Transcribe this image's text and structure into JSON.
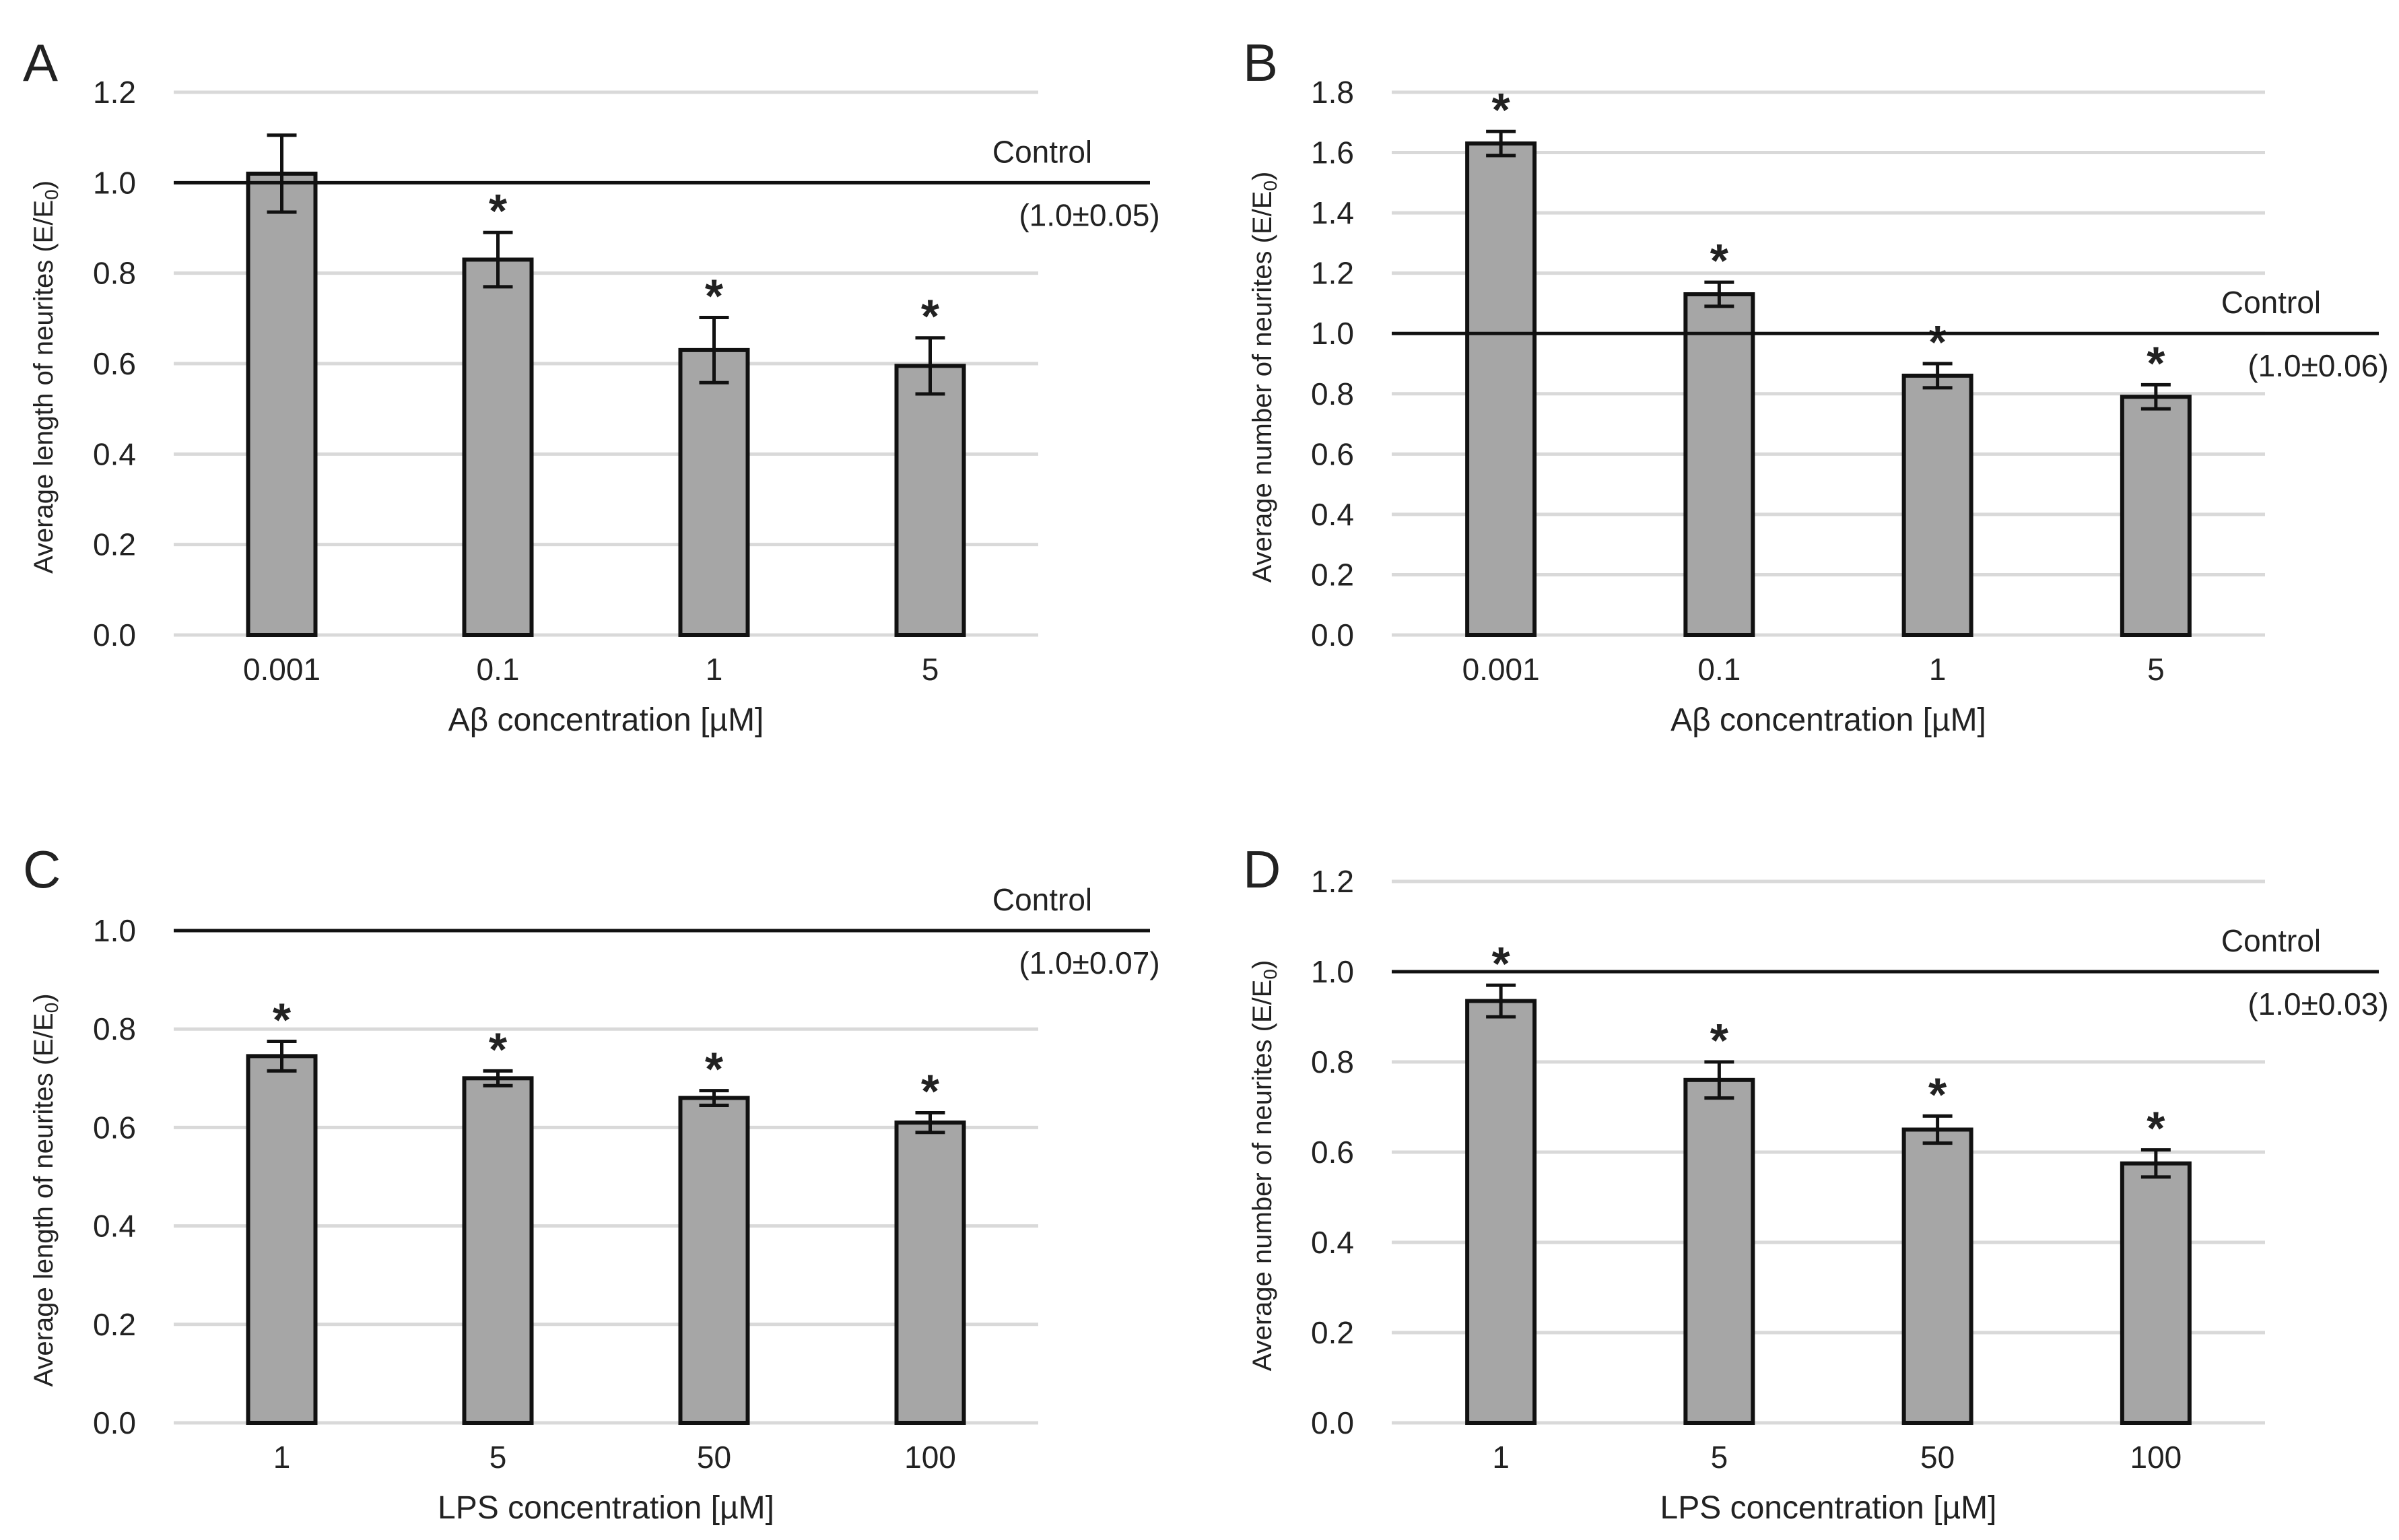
{
  "chart_data": [
    {
      "panel": "A",
      "type": "bar",
      "categories": [
        "0.001",
        "0.1",
        "1",
        "5"
      ],
      "values": [
        1.02,
        0.83,
        0.63,
        0.595
      ],
      "errors": [
        0.085,
        0.06,
        0.072,
        0.062
      ],
      "significant": [
        false,
        true,
        true,
        true
      ],
      "significance_marker": "*",
      "xlabel": "Aβ concentration [µM]",
      "ylabel": "Average length of neurites (E/E",
      "ylabel_sub": "0",
      "ylabel_end": ")",
      "ylim": [
        0,
        1.2
      ],
      "yticks": [
        "0.0",
        "0.2",
        "0.4",
        "0.6",
        "0.8",
        "1.0",
        "1.2"
      ],
      "grid": true,
      "reference_line": {
        "value": 1.0,
        "label": "Control",
        "sublabel": "(1.0±0.05)"
      },
      "bar_color": "#a6a6a6"
    },
    {
      "panel": "B",
      "type": "bar",
      "categories": [
        "0.001",
        "0.1",
        "1",
        "5"
      ],
      "values": [
        1.63,
        1.13,
        0.86,
        0.79
      ],
      "errors": [
        0.04,
        0.04,
        0.04,
        0.04
      ],
      "significant": [
        true,
        true,
        true,
        true
      ],
      "significance_marker": "*",
      "xlabel": "Aβ concentration [µM]",
      "ylabel": "Average number of neurites (E/E",
      "ylabel_sub": "0",
      "ylabel_end": ")",
      "ylim": [
        0,
        1.8
      ],
      "yticks": [
        "0.0",
        "0.2",
        "0.4",
        "0.6",
        "0.8",
        "1.0",
        "1.2",
        "1.4",
        "1.6",
        "1.8"
      ],
      "grid": true,
      "reference_line": {
        "value": 1.0,
        "label": "Control",
        "sublabel": "(1.0±0.06)"
      },
      "bar_color": "#a6a6a6"
    },
    {
      "panel": "C",
      "type": "bar",
      "categories": [
        "1",
        "5",
        "50",
        "100"
      ],
      "values": [
        0.745,
        0.7,
        0.66,
        0.61
      ],
      "errors": [
        0.03,
        0.015,
        0.015,
        0.02
      ],
      "significant": [
        true,
        true,
        true,
        true
      ],
      "significance_marker": "*",
      "xlabel": "LPS concentration [µM]",
      "ylabel": "Average length of neurites (E/E",
      "ylabel_sub": "0",
      "ylabel_end": ")",
      "ylim": [
        0,
        1.0
      ],
      "yticks": [
        "0.0",
        "0.2",
        "0.4",
        "0.6",
        "0.8",
        "1.0"
      ],
      "grid": true,
      "reference_line": {
        "value": 1.0,
        "label": "Control",
        "sublabel": "(1.0±0.07)"
      },
      "bar_color": "#a6a6a6"
    },
    {
      "panel": "D",
      "type": "bar",
      "categories": [
        "1",
        "5",
        "50",
        "100"
      ],
      "values": [
        0.935,
        0.76,
        0.65,
        0.575
      ],
      "errors": [
        0.035,
        0.04,
        0.03,
        0.03
      ],
      "significant": [
        true,
        true,
        true,
        true
      ],
      "significance_marker": "*",
      "xlabel": "LPS concentration [µM]",
      "ylabel": "Average number of neurites (E/E",
      "ylabel_sub": "0",
      "ylabel_end": ")",
      "ylim": [
        0,
        1.2
      ],
      "yticks": [
        "0.0",
        "0.2",
        "0.4",
        "0.6",
        "0.8",
        "1.0",
        "1.2"
      ],
      "grid": true,
      "reference_line": {
        "value": 1.0,
        "label": "Control",
        "sublabel": "(1.0±0.03)"
      },
      "bar_color": "#a6a6a6"
    }
  ]
}
